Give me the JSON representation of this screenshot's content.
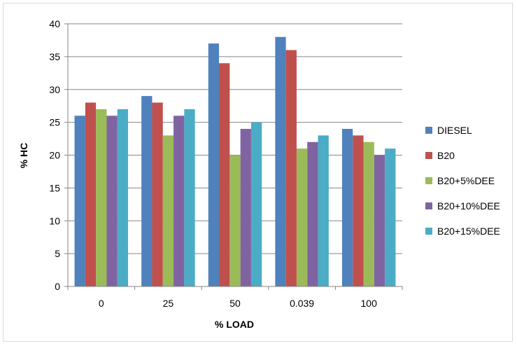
{
  "chart_data": {
    "type": "bar",
    "title": "",
    "xlabel": "% LOAD",
    "ylabel": "% HC",
    "categories": [
      "0",
      "25",
      "50",
      "0.039",
      "100"
    ],
    "ylim": [
      0,
      40
    ],
    "yticks": [
      "0",
      "5",
      "10",
      "15",
      "20",
      "25",
      "30",
      "35",
      "40"
    ],
    "grid": true,
    "legend_position": "right",
    "series": [
      {
        "name": "DIESEL",
        "color": "#4f81bd",
        "values": [
          26,
          29,
          37,
          38,
          24
        ]
      },
      {
        "name": "B20",
        "color": "#c0504d",
        "values": [
          28,
          28,
          34,
          36,
          23
        ]
      },
      {
        "name": "B20+5%DEE",
        "color": "#9bbb59",
        "values": [
          27,
          23,
          20,
          21,
          22
        ]
      },
      {
        "name": "B20+10%DEE",
        "color": "#8064a2",
        "values": [
          26,
          26,
          24,
          22,
          20
        ]
      },
      {
        "name": "B20+15%DEE",
        "color": "#4bacc6",
        "values": [
          27,
          27,
          25,
          23,
          21
        ]
      }
    ]
  }
}
